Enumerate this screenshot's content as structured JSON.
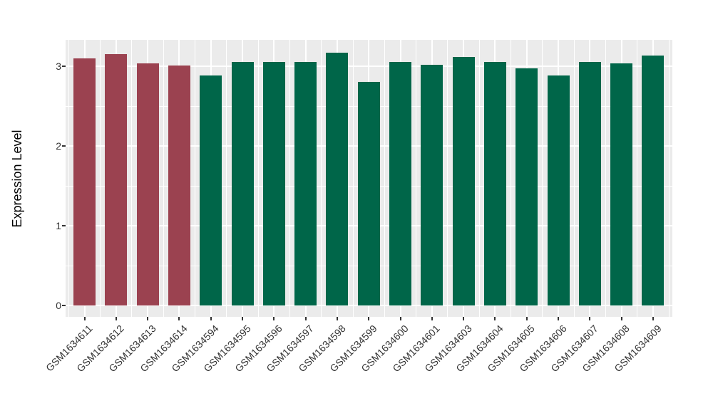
{
  "figure": {
    "background": "#FFFFFF"
  },
  "chart_data": {
    "type": "bar",
    "title": "",
    "xlabel": "",
    "ylabel": "Expression Level",
    "ylim": [
      -0.16,
      3.33
    ],
    "yticks": [
      0,
      1,
      2,
      3
    ],
    "yticks_minor": [
      0.5,
      1.5,
      2.5
    ],
    "grid": "on",
    "legend_position": "none",
    "panel_background": "#EBEBEB",
    "grid_color": "#FFFFFF",
    "axis_text_color": "#333333",
    "axis_title_color": "#000000",
    "tick_color": "#333333",
    "categories": [
      "GSM1634611",
      "GSM1634612",
      "GSM1634613",
      "GSM1634614",
      "GSM1634594",
      "GSM1634595",
      "GSM1634596",
      "GSM1634597",
      "GSM1634598",
      "GSM1634599",
      "GSM1634600",
      "GSM1634601",
      "GSM1634603",
      "GSM1634604",
      "GSM1634605",
      "GSM1634606",
      "GSM1634607",
      "GSM1634608",
      "GSM1634609"
    ],
    "values": [
      3.1,
      3.15,
      3.04,
      3.01,
      2.88,
      3.05,
      3.05,
      3.05,
      3.17,
      2.8,
      3.05,
      3.02,
      3.12,
      3.05,
      2.97,
      2.88,
      3.05,
      3.04,
      3.13
    ],
    "bar_groups": [
      "maroon",
      "maroon",
      "maroon",
      "maroon",
      "green",
      "green",
      "green",
      "green",
      "green",
      "green",
      "green",
      "green",
      "green",
      "green",
      "green",
      "green",
      "green",
      "green",
      "green"
    ],
    "group_colors": {
      "maroon": "#9B4250",
      "green": "#006649"
    }
  }
}
